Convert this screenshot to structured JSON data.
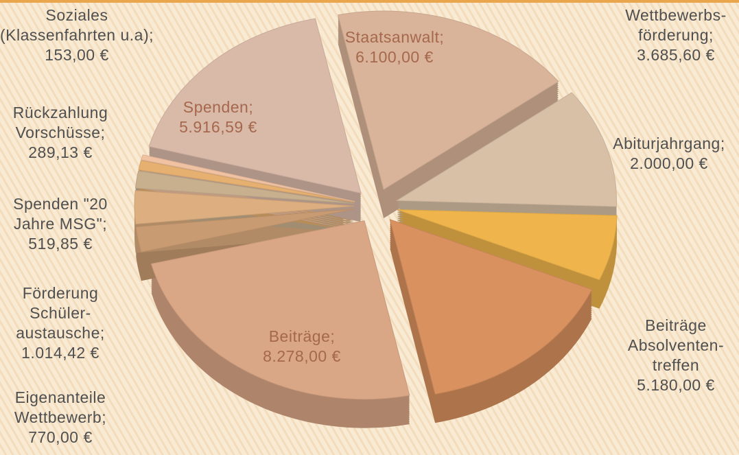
{
  "chart_data": {
    "type": "pie",
    "categories": [
      "Staatsanwalt;",
      "Wettbewerbs-förderung;",
      "Abiturjahrgang;",
      "Beiträge Absolventen-treffen",
      "Beiträge;",
      "Eigenanteile Wettbewerb;",
      "Förderung Schüler-austausche;",
      "Spenden \"20 Jahre MSG\";",
      "Rückzahlung Vorschüsse;",
      "Soziales (Klassenfahrten u.a);",
      "Spenden;"
    ],
    "values": [
      6100,
      3685.6,
      2000,
      5180,
      8278,
      770,
      1014.42,
      519.85,
      289.13,
      153,
      5916.59
    ],
    "value_labels": [
      "6.100,00 €",
      "3.685,60 €",
      "2.000,00 €",
      "5.180,00 €",
      "8.278,00 €",
      "770,00 €",
      "1.014,42 €",
      "519,85 €",
      "289,13 €",
      "153,00 €",
      "5.916,59 €"
    ],
    "colors": [
      "#d9b49a",
      "#d8c0a6",
      "#efb54c",
      "#d8915f",
      "#d9a686",
      "#c99b72",
      "#dcae80",
      "#c8b08f",
      "#e6b070",
      "#f0c2a2",
      "#d9b9a8"
    ]
  }
}
